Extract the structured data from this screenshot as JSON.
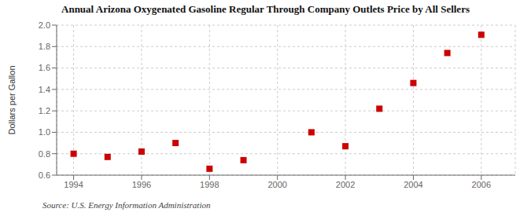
{
  "chart_data": {
    "type": "scatter",
    "title": "Annual Arizona Oxygenated Gasoline Regular Through Company Outlets Price by All Sellers",
    "ylabel": "Dollars per Gallon",
    "annotations": [
      "Source: U.S. Energy Information Administration"
    ],
    "x": [
      1994,
      1995,
      1996,
      1997,
      1998,
      1999,
      2001,
      2002,
      2003,
      2004,
      2005,
      2006
    ],
    "values": [
      0.8,
      0.77,
      0.82,
      0.9,
      0.66,
      0.74,
      1.0,
      0.87,
      1.22,
      1.46,
      1.74,
      1.91
    ],
    "color": "#cc0000",
    "marker": "square",
    "xlim": [
      1993.5,
      2007
    ],
    "ylim": [
      0.6,
      2.0
    ],
    "xticks": [
      1994,
      1996,
      1998,
      2000,
      2002,
      2004,
      2006
    ],
    "yticks": [
      0.6,
      0.8,
      {
        "value": 1,
        "label": "1.0"
      },
      1.2,
      1.4,
      1.6,
      1.8,
      {
        "value": 2,
        "label": "2.0"
      }
    ],
    "grid": true
  }
}
